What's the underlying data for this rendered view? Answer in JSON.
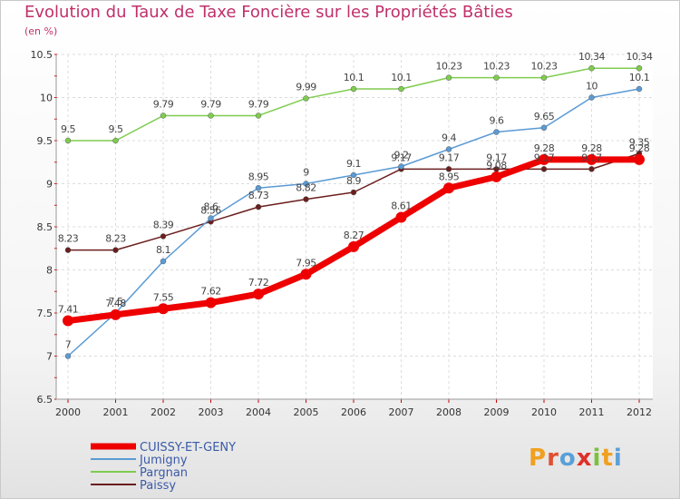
{
  "chart_data": {
    "type": "line",
    "title": "Evolution du Taux de Taxe Foncière sur les Propriétés Bâties",
    "subtitle": "(en %)",
    "xlabel": "",
    "ylabel": "",
    "ylim": [
      6.5,
      10.5
    ],
    "yticks": [
      "6.5",
      "7",
      "7.5",
      "8",
      "8.5",
      "9",
      "9.5",
      "10",
      "10.5"
    ],
    "categories": [
      "2000",
      "2001",
      "2002",
      "2003",
      "2004",
      "2005",
      "2006",
      "2007",
      "2008",
      "2009",
      "2010",
      "2011",
      "2012"
    ],
    "grid": true,
    "legend_position": "bottom-left",
    "logo": "Proxiti",
    "series": [
      {
        "name": "CUISSY-ET-GENY",
        "color": "#ee0000",
        "values": [
          7.41,
          7.48,
          7.55,
          7.62,
          7.72,
          7.95,
          8.27,
          8.61,
          8.95,
          9.08,
          9.28,
          9.28,
          9.28
        ],
        "labels": [
          "7.41",
          "7.48",
          "7.55",
          "7.62",
          "7.72",
          "7.95",
          "8.27",
          "8.61",
          "8.95",
          "9.08",
          "9.28",
          "9.28",
          "9.28"
        ]
      },
      {
        "name": "Jumigny",
        "color": "#5b9bd5",
        "values": [
          7,
          7.5,
          8.1,
          8.6,
          8.95,
          9,
          9.1,
          9.2,
          9.4,
          9.6,
          9.65,
          10,
          10.1
        ],
        "labels": [
          "7",
          "7.5",
          "8.1",
          "8.6",
          "8.95",
          "9",
          "9.1",
          "9.2",
          "9.4",
          "9.6",
          "9.65",
          "10",
          "10.1"
        ]
      },
      {
        "name": "Pargnan",
        "color": "#7fcc4f",
        "values": [
          9.5,
          9.5,
          9.79,
          9.79,
          9.79,
          9.99,
          10.1,
          10.1,
          10.23,
          10.23,
          10.23,
          10.34,
          10.34
        ],
        "labels": [
          "9.5",
          "9.5",
          "9.79",
          "9.79",
          "9.79",
          "9.99",
          "10.1",
          "10.1",
          "10.23",
          "10.23",
          "10.23",
          "10.34",
          "10.34"
        ]
      },
      {
        "name": "Paissy",
        "color": "#6b1e1e",
        "values": [
          8.23,
          8.23,
          8.39,
          8.56,
          8.73,
          8.82,
          8.9,
          9.17,
          9.17,
          9.17,
          9.17,
          9.17,
          9.35
        ],
        "labels": [
          "8.23",
          "8.23",
          "8.39",
          "8.56",
          "8.73",
          "8.82",
          "8.9",
          "9.17",
          "9.17",
          "9.17",
          "9.17",
          "9.17",
          "9.35"
        ]
      }
    ]
  }
}
